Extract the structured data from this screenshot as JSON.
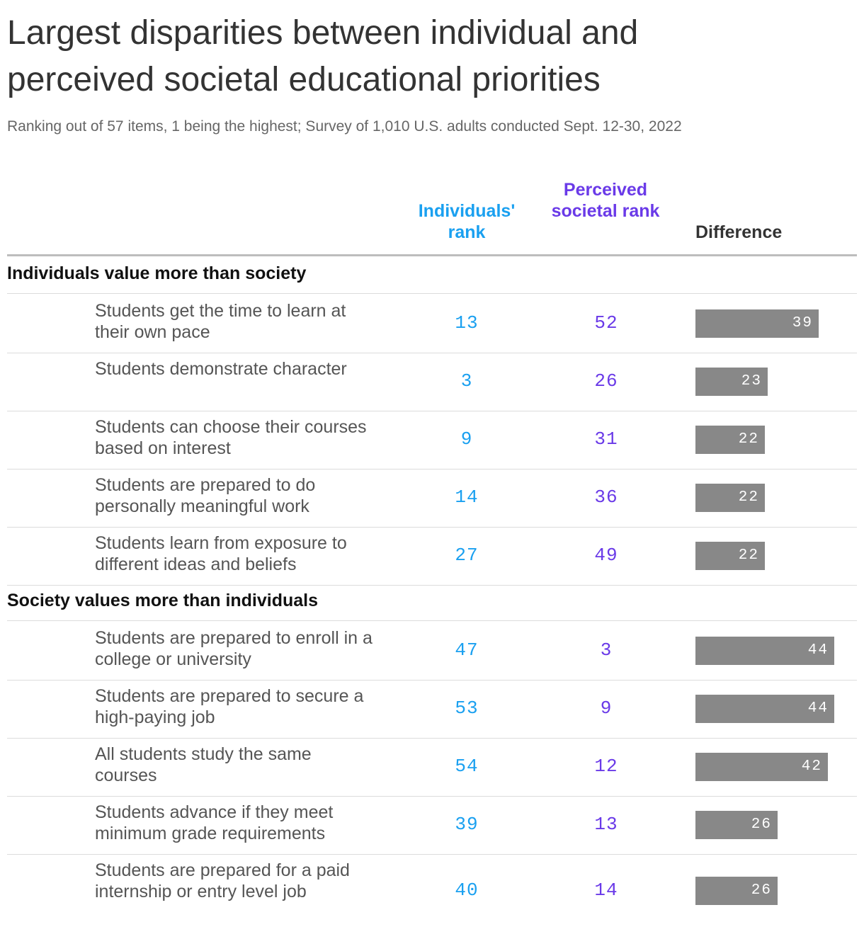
{
  "title": "Largest disparities between individual and perceived societal educational priorities",
  "subtitle": "Ranking out of 57 items, 1 being the highest; Survey of 1,010 U.S. adults conducted Sept. 12-30, 2022",
  "columns": {
    "individual": "Individuals' rank",
    "societal": "Perceived societal rank",
    "difference": "Difference"
  },
  "colors": {
    "individual": "#1aa0f0",
    "societal": "#6a3ae8",
    "bar": "#888888"
  },
  "chart_data": {
    "type": "table",
    "max_difference": 44,
    "groups": [
      {
        "name": "Individuals value more than society",
        "rows": [
          {
            "label": "Students get the time to learn at their own pace",
            "individual": 13,
            "societal": 52,
            "difference": 39
          },
          {
            "label": "Students demonstrate character",
            "individual": 3,
            "societal": 26,
            "difference": 23
          },
          {
            "label": "Students can choose their courses based on interest",
            "individual": 9,
            "societal": 31,
            "difference": 22
          },
          {
            "label": "Students are prepared to do personally meaningful work",
            "individual": 14,
            "societal": 36,
            "difference": 22
          },
          {
            "label": "Students learn from exposure to different ideas and beliefs",
            "individual": 27,
            "societal": 49,
            "difference": 22
          }
        ]
      },
      {
        "name": "Society values more than individuals",
        "rows": [
          {
            "label": "Students are prepared to enroll in a college or university",
            "individual": 47,
            "societal": 3,
            "difference": 44
          },
          {
            "label": "Students are prepared to secure a high-paying job",
            "individual": 53,
            "societal": 9,
            "difference": 44
          },
          {
            "label": "All students study the same courses",
            "individual": 54,
            "societal": 12,
            "difference": 42
          },
          {
            "label": "Students advance if they meet minimum grade requirements",
            "individual": 39,
            "societal": 13,
            "difference": 26
          },
          {
            "label": "Students are prepared for a paid internship or entry level job",
            "individual": 40,
            "societal": 14,
            "difference": 26
          }
        ]
      }
    ]
  }
}
